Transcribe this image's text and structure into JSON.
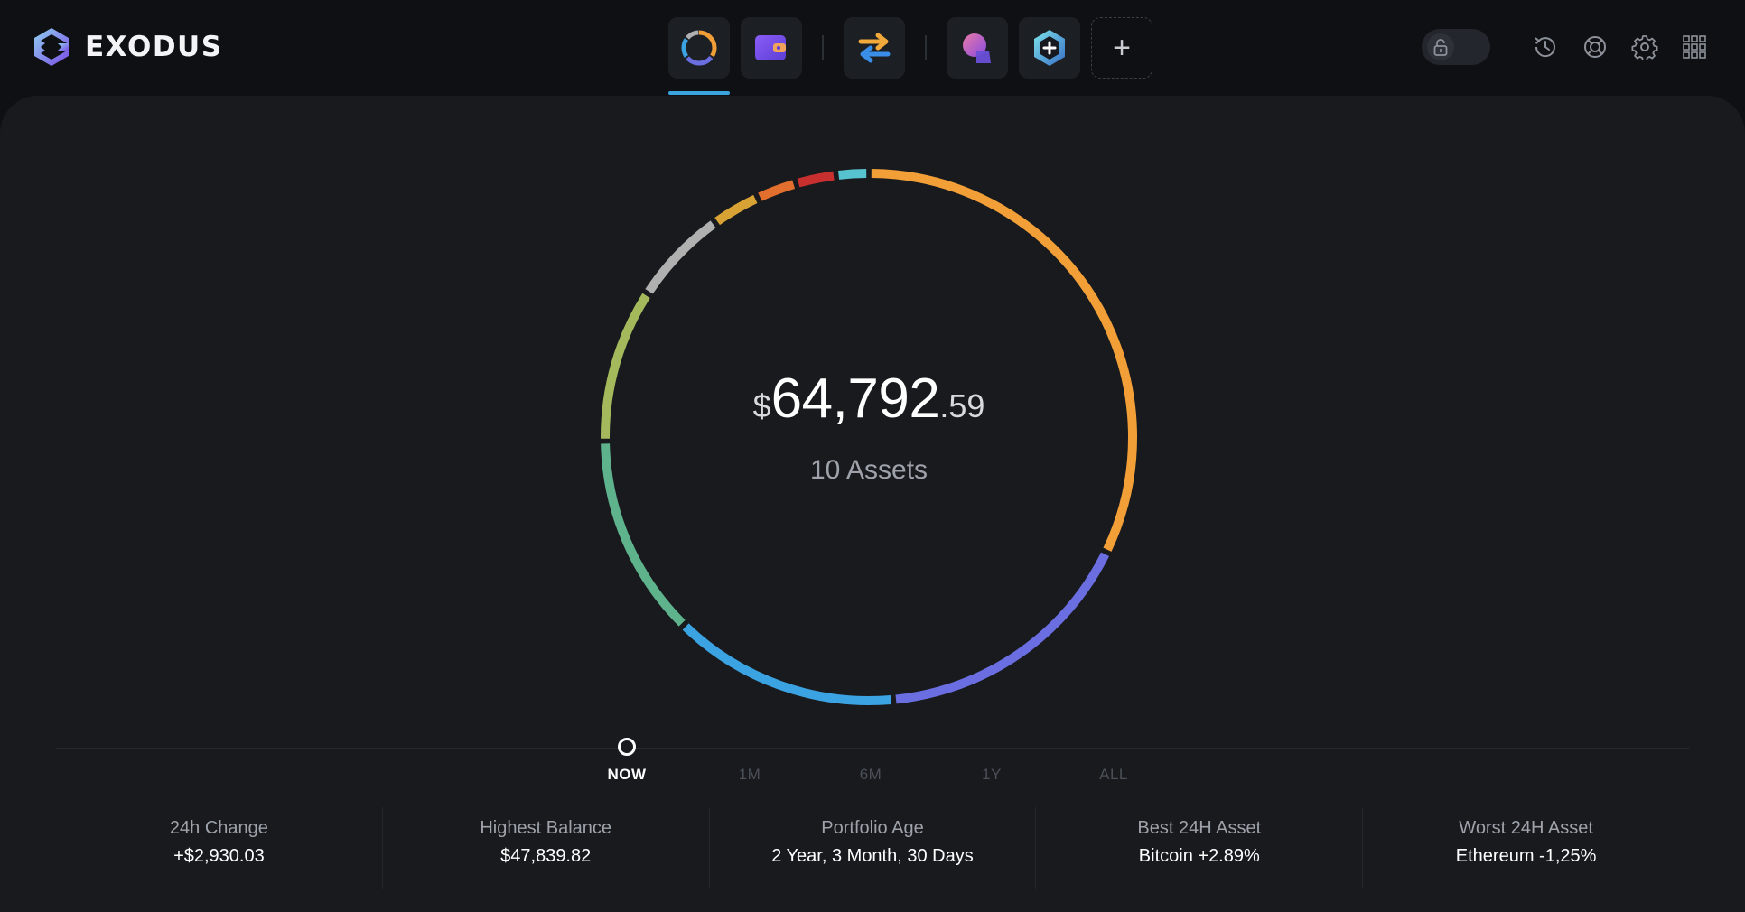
{
  "app": {
    "name": "EXODUS"
  },
  "nav": {
    "tabs": [
      {
        "id": "portfolio",
        "icon": "portfolio-donut-icon",
        "active": true
      },
      {
        "id": "wallet",
        "icon": "wallet-icon"
      },
      {
        "id": "exchange",
        "icon": "exchange-arrows-icon"
      },
      {
        "id": "apps",
        "icon": "apps-avatar-icon"
      },
      {
        "id": "web3",
        "icon": "hexagon-plus-icon"
      }
    ],
    "add_label": "+"
  },
  "tools": [
    "lock-icon",
    "history-icon",
    "support-icon",
    "settings-icon",
    "grid-menu-icon"
  ],
  "portfolio": {
    "currency_symbol": "$",
    "balance_int": "64,792",
    "balance_dec": ".59",
    "assets_label": "10 Assets"
  },
  "chart_data": {
    "type": "pie",
    "donut": true,
    "note_units": "fraction of portfolio",
    "values": [
      0.325,
      0.165,
      0.14,
      0.125,
      0.095,
      0.06,
      0.03,
      0.025,
      0.025,
      0.02
    ],
    "colors": [
      "#f29f38",
      "#6b6ee0",
      "#3ba3e2",
      "#5fb38c",
      "#a4b95c",
      "#b0b0b0",
      "#d9a235",
      "#e26f2e",
      "#c7302e",
      "#57c3cf"
    ],
    "start_angle_deg": 0
  },
  "timeline": {
    "options": [
      "NOW",
      "1M",
      "6M",
      "1Y",
      "ALL"
    ],
    "selected": "NOW"
  },
  "stats": [
    {
      "label": "24h Change",
      "value": "+$2,930.03"
    },
    {
      "label": "Highest Balance",
      "value": "$47,839.82"
    },
    {
      "label": "Portfolio Age",
      "value": "2 Year, 3 Month, 30 Days"
    },
    {
      "label": "Best 24H Asset",
      "value": "Bitcoin +2.89%"
    },
    {
      "label": "Worst 24H Asset",
      "value": "Ethereum -1,25%"
    }
  ]
}
